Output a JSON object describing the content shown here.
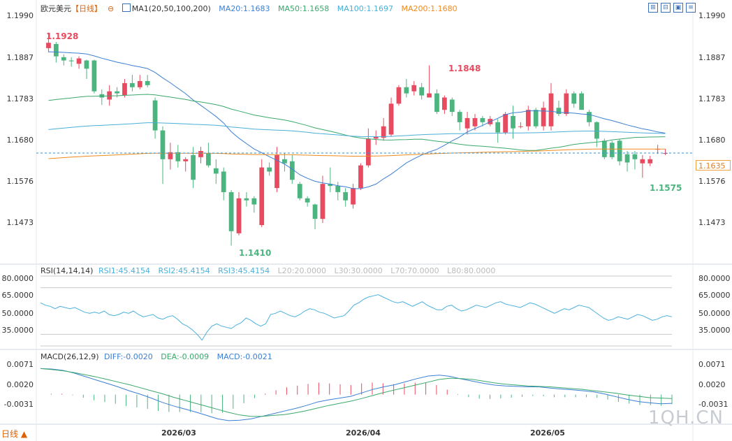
{
  "header": {
    "symbol": "欧元美元",
    "period_tag": "【日线】",
    "gear_icon": "⊖",
    "ma_name": "MA1(20,50,100,200)",
    "ma20": "MA20:1.1683",
    "ma50": "MA50:1.1658",
    "ma100": "MA100:1.1697",
    "ma200": "MA200:1.1680"
  },
  "colors": {
    "up": "#e84a5f",
    "down": "#4cb57f",
    "ma20": "#3b7fd4",
    "ma50": "#3aa86b",
    "ma100": "#4aaed8",
    "ma200": "#f08a1e",
    "rsi": "#4ab0dd",
    "diff": "#3b7fd4",
    "dea": "#3aa86b"
  },
  "toolbar": {
    "icons": [
      "expand-icon",
      "collapse-icon",
      "restore-icon",
      "menu-icon"
    ]
  },
  "price_axis": {
    "ticks": [
      "1.1990",
      "1.1887",
      "1.1783",
      "1.1680",
      "1.1576",
      "1.1473"
    ],
    "current_price": "1.1635"
  },
  "annotations": {
    "high1": "1.1928",
    "high2": "1.1848",
    "low1": "1.1410",
    "low2": "1.1575"
  },
  "rsi_panel": {
    "name": "RSI(14,14,14)",
    "rsi1": "RSI1:45.4154",
    "rsi2": "RSI2:45.4154",
    "rsi3": "RSI3:45.4154",
    "l20": "L20:20.0000",
    "l30": "L30:30.0000",
    "l70": "L70:70.0000",
    "l80": "L80:80.0000",
    "ticks": [
      "80.0000",
      "65.0000",
      "50.0000",
      "35.0000"
    ]
  },
  "macd_panel": {
    "name": "MACD(26,12,9)",
    "diff": "DIFF:-0.0020",
    "dea": "DEA:-0.0009",
    "macd": "MACD:-0.0021",
    "ticks": [
      "0.0071",
      "0.0020",
      "-0.0031"
    ]
  },
  "dates": [
    "2026/03",
    "2026/04",
    "2026/05"
  ],
  "period_label": "日线 ▲",
  "watermark": "1QH.CN",
  "chart_data": [
    {
      "type": "candlestick",
      "title": "欧元美元【日线】",
      "ylim": [
        1.137,
        1.199
      ],
      "ohlc": [
        [
          1.189,
          1.1928,
          1.188,
          1.1903
        ],
        [
          1.19,
          1.1905,
          1.1855,
          1.187
        ],
        [
          1.1868,
          1.1875,
          1.1848,
          1.186
        ],
        [
          1.186,
          1.1868,
          1.1845,
          1.1858
        ],
        [
          1.1852,
          1.187,
          1.184,
          1.1865
        ],
        [
          1.186,
          1.1862,
          1.1815,
          1.184
        ],
        [
          1.186,
          1.1862,
          1.178,
          1.1785
        ],
        [
          1.1778,
          1.179,
          1.1752,
          1.177
        ],
        [
          1.1765,
          1.18,
          1.175,
          1.1785
        ],
        [
          1.1785,
          1.1795,
          1.177,
          1.178
        ],
        [
          1.1775,
          1.1815,
          1.177,
          1.1805
        ],
        [
          1.1805,
          1.1825,
          1.1785,
          1.1795
        ],
        [
          1.1795,
          1.1825,
          1.179,
          1.181
        ],
        [
          1.181,
          1.1825,
          1.1795,
          1.18
        ],
        [
          1.1763,
          1.177,
          1.167,
          1.169
        ],
        [
          1.169,
          1.17,
          1.156,
          1.162
        ],
        [
          1.162,
          1.166,
          1.1595,
          1.1637
        ],
        [
          1.1637,
          1.1655,
          1.16,
          1.1615
        ],
        [
          1.1615,
          1.1625,
          1.159,
          1.162
        ],
        [
          1.163,
          1.165,
          1.155,
          1.157
        ],
        [
          1.1625,
          1.165,
          1.161,
          1.164
        ],
        [
          1.1635,
          1.166,
          1.16,
          1.1605
        ],
        [
          1.1598,
          1.162,
          1.156,
          1.1585
        ],
        [
          1.159,
          1.16,
          1.152,
          1.154
        ],
        [
          1.154,
          1.1545,
          1.141,
          1.1445
        ],
        [
          1.144,
          1.154,
          1.1435,
          1.1525
        ],
        [
          1.1525,
          1.154,
          1.1505,
          1.152
        ],
        [
          1.1525,
          1.153,
          1.149,
          1.151
        ],
        [
          1.146,
          1.162,
          1.1455,
          1.16
        ],
        [
          1.16,
          1.1612,
          1.158,
          1.159
        ],
        [
          1.155,
          1.165,
          1.154,
          1.163
        ],
        [
          1.162,
          1.1635,
          1.159,
          1.161
        ],
        [
          1.1615,
          1.163,
          1.156,
          1.157
        ],
        [
          1.156,
          1.1565,
          1.152,
          1.1525
        ],
        [
          1.1525,
          1.153,
          1.1505,
          1.1515
        ],
        [
          1.151,
          1.1512,
          1.145,
          1.1475
        ],
        [
          1.1475,
          1.158,
          1.1465,
          1.156
        ],
        [
          1.156,
          1.16,
          1.154,
          1.1555
        ],
        [
          1.1555,
          1.1565,
          1.152,
          1.154
        ],
        [
          1.154,
          1.155,
          1.1505,
          1.152
        ],
        [
          1.151,
          1.156,
          1.15,
          1.155
        ],
        [
          1.155,
          1.161,
          1.1545,
          1.1605
        ],
        [
          1.1605,
          1.1695,
          1.16,
          1.167
        ],
        [
          1.167,
          1.169,
          1.1655,
          1.1675
        ],
        [
          1.1672,
          1.172,
          1.1665,
          1.17
        ],
        [
          1.168,
          1.177,
          1.1675,
          1.1755
        ],
        [
          1.1755,
          1.18,
          1.175,
          1.1795
        ],
        [
          1.1795,
          1.1815,
          1.177,
          1.178
        ],
        [
          1.1785,
          1.181,
          1.1775,
          1.18
        ],
        [
          1.1795,
          1.1805,
          1.1765,
          1.1775
        ],
        [
          1.177,
          1.1848,
          1.177,
          1.178
        ],
        [
          1.178,
          1.179,
          1.173,
          1.1735
        ],
        [
          1.174,
          1.1775,
          1.173,
          1.177
        ],
        [
          1.1765,
          1.177,
          1.1725,
          1.1735
        ],
        [
          1.1735,
          1.174,
          1.169,
          1.171
        ],
        [
          1.1695,
          1.1735,
          1.168,
          1.172
        ],
        [
          1.17,
          1.173,
          1.169,
          1.172
        ],
        [
          1.172,
          1.1725,
          1.17,
          1.171
        ],
        [
          1.1705,
          1.1725,
          1.17,
          1.1718
        ],
        [
          1.171,
          1.1718,
          1.166,
          1.1685
        ],
        [
          1.1685,
          1.1735,
          1.168,
          1.173
        ],
        [
          1.1725,
          1.175,
          1.167,
          1.1695
        ],
        [
          1.17,
          1.171,
          1.1695,
          1.17
        ],
        [
          1.17,
          1.175,
          1.169,
          1.174
        ],
        [
          1.174,
          1.1745,
          1.1695,
          1.17
        ],
        [
          1.17,
          1.176,
          1.169,
          1.1745
        ],
        [
          1.17,
          1.1805,
          1.169,
          1.178
        ],
        [
          1.1745,
          1.1762,
          1.1725,
          1.173
        ],
        [
          1.173,
          1.179,
          1.1725,
          1.178
        ],
        [
          1.178,
          1.1785,
          1.1745,
          1.1755
        ],
        [
          1.178,
          1.1785,
          1.174,
          1.174
        ],
        [
          1.1735,
          1.174,
          1.17,
          1.171
        ],
        [
          1.171,
          1.1712,
          1.165,
          1.167
        ],
        [
          1.1665,
          1.167,
          1.162,
          1.1625
        ],
        [
          1.166,
          1.1665,
          1.162,
          1.1625
        ],
        [
          1.1665,
          1.167,
          1.1605,
          1.1615
        ],
        [
          1.1632,
          1.164,
          1.159,
          1.1612
        ],
        [
          1.1632,
          1.164,
          1.1595,
          1.162
        ],
        [
          1.161,
          1.163,
          1.1575,
          1.162
        ],
        [
          1.161,
          1.1628,
          1.1603,
          1.162
        ],
        [
          1.1645,
          1.1655,
          1.1633,
          1.1645
        ],
        [
          1.1635,
          1.1645,
          1.163,
          1.1635
        ]
      ]
    },
    {
      "type": "line",
      "title": "RSI(14,14,14)",
      "ylim": [
        20,
        80
      ],
      "reference_lines": [
        20,
        30,
        70,
        80
      ],
      "series": [
        {
          "name": "RSI1",
          "values": [
            57,
            55,
            54,
            52,
            54,
            53,
            52,
            53,
            51,
            49,
            48,
            49,
            48,
            50,
            47,
            46,
            47,
            49,
            48,
            50,
            47,
            45,
            46,
            47,
            44,
            43,
            45,
            46,
            43,
            39,
            37,
            34,
            30,
            25,
            32,
            37,
            39,
            37,
            36,
            35,
            38,
            40,
            44,
            42,
            39,
            37,
            39,
            47,
            48,
            50,
            48,
            46,
            45,
            47,
            50,
            52,
            51,
            49,
            48,
            46,
            44,
            45,
            46,
            50,
            55,
            57,
            60,
            62,
            63,
            64,
            62,
            60,
            58,
            57,
            58,
            56,
            54,
            56,
            58,
            55,
            53,
            51,
            51,
            54,
            55,
            52,
            50,
            51,
            53,
            55,
            54,
            53,
            55,
            57,
            58,
            56,
            55,
            54,
            53,
            55,
            57,
            56,
            54,
            52,
            50,
            48,
            50,
            52,
            51,
            53,
            55,
            54,
            53,
            50,
            47,
            44,
            42,
            43,
            45,
            44,
            43,
            45,
            47,
            46,
            44,
            42,
            43,
            45,
            46,
            45
          ]
        }
      ]
    },
    {
      "type": "line",
      "title": "MACD(26,12,9)",
      "ylim": [
        -0.0065,
        0.008
      ],
      "series": [
        {
          "name": "DIFF",
          "values": [
            0.006,
            0.0059,
            0.0056,
            0.005,
            0.0042,
            0.0034,
            0.0026,
            0.0018,
            0.0009,
            0.0001,
            -0.0008,
            -0.0018,
            -0.0026,
            -0.0033,
            -0.004,
            -0.0048,
            -0.0056,
            -0.006,
            -0.0059,
            -0.0056,
            -0.005,
            -0.0044,
            -0.0038,
            -0.0032,
            -0.0025,
            -0.0017,
            -0.0012,
            -0.0008,
            -0.0004,
            0.0004,
            0.0012,
            0.0018,
            0.0023,
            0.003,
            0.0037,
            0.0043,
            0.0045,
            0.0042,
            0.0036,
            0.0031,
            0.0026,
            0.0022,
            0.002,
            0.0019,
            0.0018,
            0.0018,
            0.0015,
            0.0013,
            0.0011,
            0.0009,
            0.0006,
            0.0001,
            -0.0005,
            -0.0011,
            -0.0016,
            -0.0019,
            -0.0021,
            -0.002
          ]
        },
        {
          "name": "DEA",
          "values": [
            0.006,
            0.0058,
            0.0055,
            0.0051,
            0.0046,
            0.0041,
            0.0035,
            0.0029,
            0.0023,
            0.0016,
            0.0009,
            0.0002,
            -0.0006,
            -0.0013,
            -0.002,
            -0.0027,
            -0.0034,
            -0.0041,
            -0.0047,
            -0.005,
            -0.005,
            -0.0048,
            -0.0046,
            -0.0042,
            -0.0037,
            -0.0031,
            -0.0025,
            -0.002,
            -0.0015,
            -0.0009,
            -0.0002,
            0.0005,
            0.0011,
            0.0017,
            0.0023,
            0.0029,
            0.0035,
            0.0038,
            0.0037,
            0.0035,
            0.0031,
            0.0027,
            0.0024,
            0.0022,
            0.002,
            0.0019,
            0.0018,
            0.0016,
            0.0014,
            0.0012,
            0.0009,
            0.0006,
            0.0003,
            -0.0001,
            -0.0004,
            -0.0007,
            -0.0008,
            -0.0009
          ]
        }
      ]
    }
  ]
}
